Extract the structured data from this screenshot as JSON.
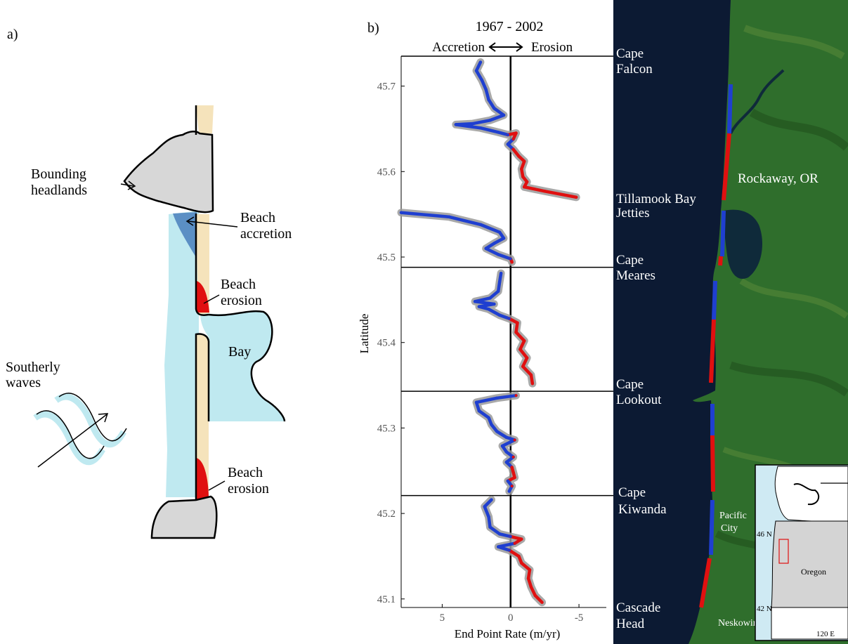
{
  "panel_a": {
    "label": "a)",
    "headlands_label": [
      "Bounding",
      "headlands"
    ],
    "accretion_label": [
      "Beach",
      "accretion"
    ],
    "erosion_label_1": [
      "Beach",
      "erosion"
    ],
    "erosion_label_2": [
      "Beach",
      "erosion"
    ],
    "bay_label": "Bay",
    "waves_label": [
      "Southerly",
      "waves"
    ]
  },
  "panel_b": {
    "label": "b)",
    "map_labels": [
      {
        "lines": [
          "Cape",
          "Falcon"
        ]
      },
      {
        "lines": [
          "Tillamook Bay",
          "Jetties"
        ]
      },
      {
        "lines": [
          "Cape",
          "Meares"
        ]
      },
      {
        "lines": [
          "Cape",
          "Lookout"
        ]
      },
      {
        "lines": [
          "Cape",
          "Kiwanda"
        ]
      },
      {
        "lines": [
          "Cascade",
          "Head"
        ]
      }
    ],
    "place_labels": {
      "rockaway": "Rockaway, OR",
      "pacific_city": [
        "Pacific",
        "City"
      ],
      "neskowin": "Neskowin"
    },
    "inset": {
      "state": "Oregon",
      "lat_46": "46 N",
      "lat_42": "42 N",
      "lon": "120 E"
    }
  },
  "colors": {
    "accretion": "#1f3fd0",
    "erosion": "#e01010",
    "uncertainty": "#9a9a9a",
    "sand": "#f5e3bb",
    "water": "#bfe9f0",
    "accretion_area": "#5b8fc4",
    "headland": "#d7d7d7",
    "ocean": "#0c1a33",
    "land": "#2f6e2c"
  },
  "chart_data": {
    "type": "line",
    "title": "1967 - 2002",
    "subtitle_left": "Accretion",
    "subtitle_right": "Erosion",
    "xlabel": "End Point Rate (m/yr)",
    "ylabel": "Latitude",
    "xlim": [
      8,
      -7
    ],
    "ylim": [
      45.09,
      45.735
    ],
    "x_ticks": [
      "5",
      "0",
      "-5"
    ],
    "y_ticks": [
      "45.1",
      "45.2",
      "45.3",
      "45.4",
      "45.5",
      "45.6",
      "45.7"
    ],
    "cell_boundaries": [
      45.735,
      45.488,
      45.343,
      45.221
    ],
    "series": [
      {
        "style": "profile",
        "points": [
          [
            2.2,
            45.728
          ],
          [
            2.5,
            45.718
          ],
          [
            2.1,
            45.707
          ],
          [
            1.8,
            45.696
          ],
          [
            1.6,
            45.684
          ],
          [
            1.2,
            45.674
          ],
          [
            0.5,
            45.666
          ],
          [
            1.5,
            45.66
          ],
          [
            2.8,
            45.656
          ],
          [
            4.0,
            45.655
          ],
          [
            2.2,
            45.651
          ],
          [
            0.9,
            45.646
          ],
          [
            0.2,
            45.643
          ],
          [
            -0.4,
            45.645
          ],
          [
            -0.2,
            45.638
          ],
          [
            0.2,
            45.632
          ],
          [
            -0.2,
            45.626
          ],
          [
            -0.6,
            45.618
          ],
          [
            -1.0,
            45.612
          ],
          [
            -0.8,
            45.603
          ],
          [
            -0.9,
            45.594
          ],
          [
            -1.2,
            45.588
          ],
          [
            -1.0,
            45.582
          ],
          [
            -2.5,
            45.577
          ],
          [
            -4.8,
            45.57
          ]
        ]
      },
      {
        "style": "profile",
        "points": [
          [
            8.0,
            45.552
          ],
          [
            4.5,
            45.547
          ],
          [
            2.2,
            45.538
          ],
          [
            0.8,
            45.529
          ],
          [
            0.5,
            45.522
          ],
          [
            1.2,
            45.516
          ],
          [
            1.8,
            45.51
          ],
          [
            0.9,
            45.503
          ],
          [
            0.0,
            45.498
          ],
          [
            -0.1,
            45.494
          ]
        ]
      },
      {
        "style": "profile",
        "points": [
          [
            0.7,
            45.481
          ],
          [
            0.8,
            45.471
          ],
          [
            0.9,
            45.46
          ],
          [
            1.5,
            45.452
          ],
          [
            2.6,
            45.448
          ],
          [
            1.2,
            45.445
          ],
          [
            2.3,
            45.442
          ],
          [
            1.6,
            45.439
          ],
          [
            0.8,
            45.432
          ],
          [
            0.1,
            45.428
          ],
          [
            -0.5,
            45.423
          ],
          [
            -0.4,
            45.412
          ],
          [
            -1.0,
            45.402
          ],
          [
            -0.7,
            45.392
          ],
          [
            -1.2,
            45.382
          ],
          [
            -0.9,
            45.372
          ],
          [
            -1.5,
            45.362
          ],
          [
            -1.6,
            45.352
          ]
        ]
      },
      {
        "style": "profile",
        "points": [
          [
            -0.4,
            45.338
          ],
          [
            1.0,
            45.335
          ],
          [
            2.5,
            45.33
          ],
          [
            2.3,
            45.32
          ],
          [
            1.6,
            45.312
          ],
          [
            1.4,
            45.304
          ],
          [
            1.0,
            45.296
          ],
          [
            0.3,
            45.289
          ],
          [
            -0.3,
            45.286
          ],
          [
            0.6,
            45.279
          ],
          [
            0.3,
            45.272
          ],
          [
            -0.2,
            45.266
          ],
          [
            0.3,
            45.26
          ],
          [
            -0.1,
            45.254
          ],
          [
            -0.2,
            45.248
          ],
          [
            -0.3,
            45.242
          ],
          [
            0.2,
            45.238
          ],
          [
            -0.1,
            45.232
          ],
          [
            0.1,
            45.226
          ]
        ]
      },
      {
        "style": "profile",
        "points": [
          [
            1.4,
            45.216
          ],
          [
            1.9,
            45.208
          ],
          [
            1.6,
            45.196
          ],
          [
            1.5,
            45.184
          ],
          [
            0.8,
            45.176
          ],
          [
            0.0,
            45.173
          ],
          [
            -0.8,
            45.17
          ],
          [
            -0.3,
            45.165
          ],
          [
            0.9,
            45.161
          ],
          [
            0.1,
            45.157
          ],
          [
            -0.6,
            45.15
          ],
          [
            -0.8,
            45.142
          ],
          [
            -1.4,
            45.134
          ],
          [
            -1.3,
            45.124
          ],
          [
            -1.5,
            45.114
          ],
          [
            -1.8,
            45.104
          ],
          [
            -2.3,
            45.096
          ]
        ]
      }
    ]
  }
}
